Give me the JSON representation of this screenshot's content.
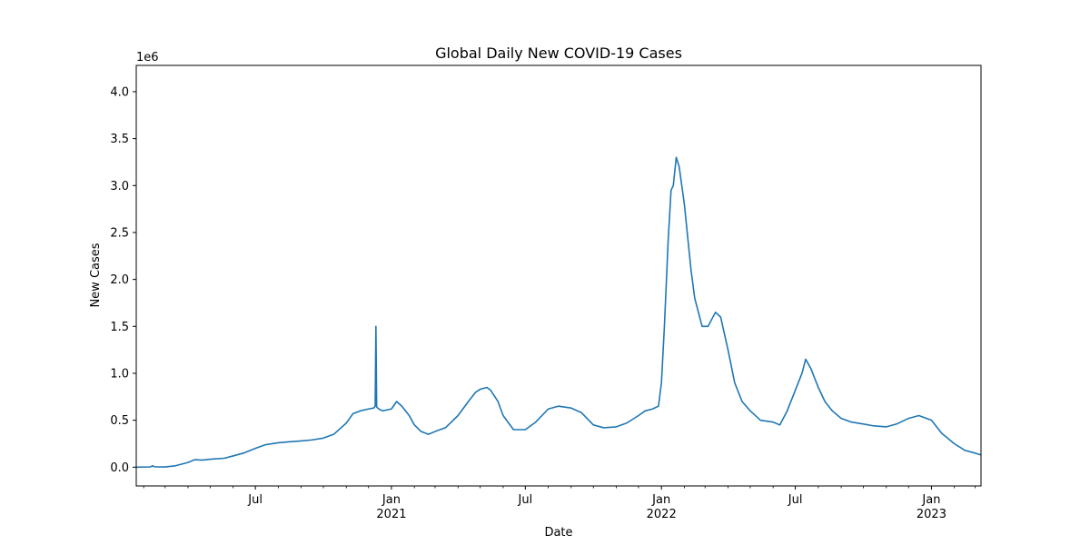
{
  "chart_data": {
    "type": "line",
    "title": "Global Daily New COVID-19 Cases",
    "xlabel": "Date",
    "ylabel": "New Cases",
    "y_offset_label": "1e6",
    "ylim": [
      -200000,
      4280000
    ],
    "xlim": [
      "2020-01-22",
      "2023-03-09"
    ],
    "grid": false,
    "line_color": "#1f77b4",
    "y_ticks": [
      {
        "value": 0,
        "label": "0.0"
      },
      {
        "value": 500000,
        "label": "0.5"
      },
      {
        "value": 1000000,
        "label": "1.0"
      },
      {
        "value": 1500000,
        "label": "1.5"
      },
      {
        "value": 2000000,
        "label": "2.0"
      },
      {
        "value": 2500000,
        "label": "2.5"
      },
      {
        "value": 3000000,
        "label": "3.0"
      },
      {
        "value": 3500000,
        "label": "3.5"
      },
      {
        "value": 4000000,
        "label": "4.0"
      }
    ],
    "x_major_ticks": [
      {
        "date": "2020-07-01",
        "label": "Jul",
        "year": ""
      },
      {
        "date": "2021-01-01",
        "label": "Jan",
        "year": "2021"
      },
      {
        "date": "2021-07-01",
        "label": "Jul",
        "year": ""
      },
      {
        "date": "2022-01-01",
        "label": "Jan",
        "year": "2022"
      },
      {
        "date": "2022-07-01",
        "label": "Jul",
        "year": ""
      },
      {
        "date": "2023-01-01",
        "label": "Jan",
        "year": "2023"
      }
    ],
    "x_minor_ticks": [
      "2020-02-01",
      "2020-03-01",
      "2020-04-01",
      "2020-05-01",
      "2020-06-01",
      "2020-08-01",
      "2020-09-01",
      "2020-10-01",
      "2020-11-01",
      "2020-12-01",
      "2021-02-01",
      "2021-03-01",
      "2021-04-01",
      "2021-05-01",
      "2021-06-01",
      "2021-08-01",
      "2021-09-01",
      "2021-10-01",
      "2021-11-01",
      "2021-12-01",
      "2022-02-01",
      "2022-03-01",
      "2022-04-01",
      "2022-05-01",
      "2022-06-01",
      "2022-08-01",
      "2022-09-01",
      "2022-10-01",
      "2022-11-01",
      "2022-12-01",
      "2023-02-01",
      "2023-03-01"
    ],
    "series": [
      {
        "x": [
          "2020-01-22",
          "2020-02-01",
          "2020-02-10",
          "2020-02-13",
          "2020-02-16",
          "2020-03-01",
          "2020-03-15",
          "2020-04-01",
          "2020-04-10",
          "2020-04-20",
          "2020-05-01",
          "2020-05-20",
          "2020-06-01",
          "2020-06-15",
          "2020-07-01",
          "2020-07-15",
          "2020-08-01",
          "2020-08-15",
          "2020-09-01",
          "2020-09-15",
          "2020-10-01",
          "2020-10-15",
          "2020-11-01",
          "2020-11-10",
          "2020-11-20",
          "2020-12-01",
          "2020-12-08",
          "2020-12-10",
          "2020-12-11",
          "2020-12-12",
          "2020-12-15",
          "2020-12-20",
          "2021-01-01",
          "2021-01-08",
          "2021-01-15",
          "2021-01-25",
          "2021-02-01",
          "2021-02-10",
          "2021-02-20",
          "2021-03-01",
          "2021-03-15",
          "2021-04-01",
          "2021-04-15",
          "2021-04-25",
          "2021-05-01",
          "2021-05-10",
          "2021-05-15",
          "2021-05-25",
          "2021-06-01",
          "2021-06-15",
          "2021-07-01",
          "2021-07-15",
          "2021-08-01",
          "2021-08-15",
          "2021-09-01",
          "2021-09-15",
          "2021-10-01",
          "2021-10-15",
          "2021-11-01",
          "2021-11-15",
          "2021-12-01",
          "2021-12-10",
          "2021-12-20",
          "2021-12-28",
          "2022-01-01",
          "2022-01-05",
          "2022-01-10",
          "2022-01-14",
          "2022-01-17",
          "2022-01-21",
          "2022-01-25",
          "2022-02-01",
          "2022-02-10",
          "2022-02-15",
          "2022-02-25",
          "2022-03-05",
          "2022-03-15",
          "2022-03-22",
          "2022-04-01",
          "2022-04-10",
          "2022-04-20",
          "2022-05-01",
          "2022-05-15",
          "2022-06-01",
          "2022-06-10",
          "2022-06-20",
          "2022-07-01",
          "2022-07-10",
          "2022-07-15",
          "2022-07-22",
          "2022-08-01",
          "2022-08-10",
          "2022-08-20",
          "2022-09-01",
          "2022-09-15",
          "2022-10-01",
          "2022-10-15",
          "2022-11-01",
          "2022-11-15",
          "2022-12-01",
          "2022-12-15",
          "2023-01-01",
          "2023-01-15",
          "2023-02-01",
          "2023-02-15",
          "2023-03-01",
          "2023-03-09"
        ],
        "y": [
          600,
          2000,
          3000,
          15000,
          4000,
          3000,
          15000,
          50000,
          80000,
          75000,
          85000,
          95000,
          120000,
          150000,
          200000,
          240000,
          260000,
          270000,
          280000,
          290000,
          310000,
          350000,
          470000,
          570000,
          600000,
          620000,
          630000,
          650000,
          1500000,
          640000,
          620000,
          600000,
          620000,
          700000,
          650000,
          550000,
          450000,
          380000,
          350000,
          380000,
          420000,
          550000,
          700000,
          800000,
          830000,
          850000,
          820000,
          700000,
          550000,
          400000,
          400000,
          480000,
          620000,
          650000,
          630000,
          580000,
          450000,
          420000,
          430000,
          470000,
          550000,
          600000,
          620000,
          650000,
          900000,
          1500000,
          2400000,
          2950000,
          3000000,
          3300000,
          3200000,
          2800000,
          2100000,
          1800000,
          1500000,
          1500000,
          1650000,
          1600000,
          1250000,
          900000,
          700000,
          600000,
          500000,
          480000,
          450000,
          600000,
          820000,
          1000000,
          1150000,
          1050000,
          850000,
          700000,
          600000,
          520000,
          480000,
          460000,
          440000,
          430000,
          460000,
          520000,
          550000,
          500000,
          360000,
          250000,
          180000,
          150000,
          130000
        ]
      }
    ]
  }
}
